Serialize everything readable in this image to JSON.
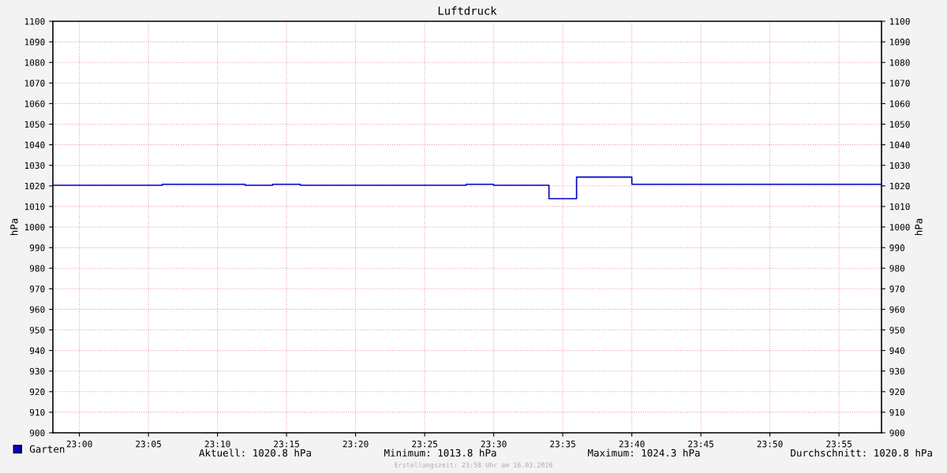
{
  "chart_data": {
    "type": "step",
    "title": "Luftdruck",
    "ylabel": "hPa",
    "y2label": "hPa",
    "x": [
      22.968,
      23.1,
      23.2,
      23.2333,
      23.2667,
      23.4667,
      23.5,
      23.5667,
      23.6,
      23.6667,
      23.968
    ],
    "series": [
      {
        "name": "Garten",
        "color": "#0000cc",
        "values": [
          1020.3,
          1020.8,
          1020.3,
          1020.8,
          1020.3,
          1020.8,
          1020.3,
          1013.8,
          1024.3,
          1020.8,
          1020.8
        ]
      }
    ],
    "xlim": [
      22.968,
      23.968
    ],
    "xticks": [
      {
        "value": 23.0,
        "label": "23:00"
      },
      {
        "value": 23.0833,
        "label": "23:05"
      },
      {
        "value": 23.1667,
        "label": "23:10"
      },
      {
        "value": 23.25,
        "label": "23:15"
      },
      {
        "value": 23.3333,
        "label": "23:20"
      },
      {
        "value": 23.4167,
        "label": "23:25"
      },
      {
        "value": 23.5,
        "label": "23:30"
      },
      {
        "value": 23.5833,
        "label": "23:35"
      },
      {
        "value": 23.6667,
        "label": "23:40"
      },
      {
        "value": 23.75,
        "label": "23:45"
      },
      {
        "value": 23.8333,
        "label": "23:50"
      },
      {
        "value": 23.9167,
        "label": "23:55"
      }
    ],
    "ylim": [
      900,
      1100
    ],
    "yticks": [
      900,
      910,
      920,
      930,
      940,
      950,
      960,
      970,
      980,
      990,
      1000,
      1010,
      1020,
      1030,
      1040,
      1050,
      1060,
      1070,
      1080,
      1090,
      1100
    ],
    "y2lim": [
      900,
      1100
    ],
    "y2ticks": [
      900,
      910,
      920,
      930,
      940,
      950,
      960,
      970,
      980,
      990,
      1000,
      1010,
      1020,
      1030,
      1040,
      1050,
      1060,
      1070,
      1080,
      1090,
      1100
    ],
    "grid": true,
    "legend": "bottom left",
    "annotations": [
      "Aktuell: 1020.8 hPa",
      "Minimum: 1013.8 hPa",
      "Maximum: 1024.3 hPa",
      "Durchschnitt: 1020.8 hPa",
      "Erstellungszeit: 23:58 Uhr am 16.03.2026"
    ]
  }
}
